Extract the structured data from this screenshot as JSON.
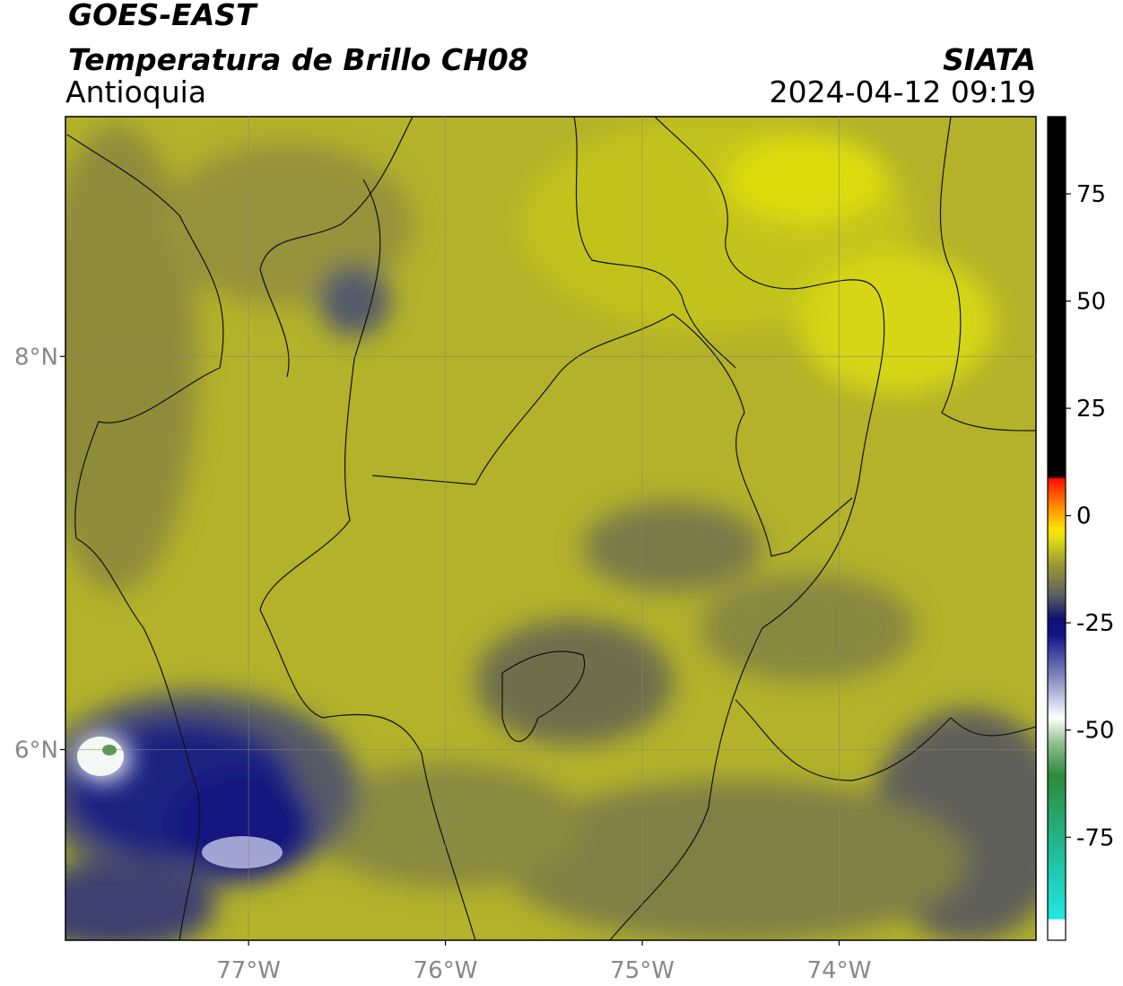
{
  "header": {
    "satellite": "GOES-EAST",
    "product": "Temperatura de Brillo CH08",
    "region": "Antioquia",
    "source": "SIATA",
    "datetime": "2024-04-12 09:19"
  },
  "map": {
    "xlim": [
      -77.93,
      -73.0
    ],
    "ylim": [
      5.03,
      9.22
    ],
    "xticks": [
      {
        "value": -77,
        "label": "77°W"
      },
      {
        "value": -76,
        "label": "76°W"
      },
      {
        "value": -75,
        "label": "75°W"
      },
      {
        "value": -74,
        "label": "74°W"
      }
    ],
    "yticks": [
      {
        "value": 6,
        "label": "6°N"
      },
      {
        "value": 8,
        "label": "8°N"
      }
    ],
    "grid": true
  },
  "colorbar": {
    "lim": [
      -99,
      93
    ],
    "ticks": [
      75,
      50,
      25,
      0,
      -25,
      -50,
      -75
    ]
  }
}
